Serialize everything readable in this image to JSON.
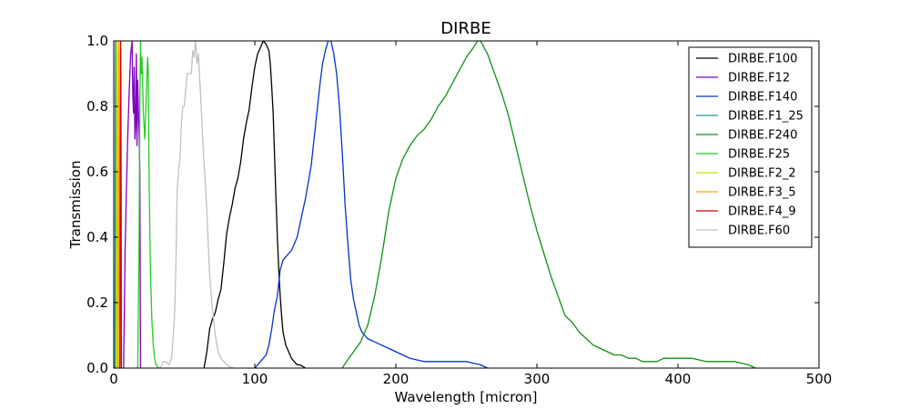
{
  "chart_data": {
    "type": "line",
    "title": "DIRBE",
    "xlabel": "Wavelength [micron]",
    "ylabel": "Transmission",
    "xlim": [
      0,
      500
    ],
    "ylim": [
      0,
      1.0
    ],
    "xticks": [
      0,
      100,
      200,
      300,
      400,
      500
    ],
    "yticks": [
      0.0,
      0.2,
      0.4,
      0.6,
      0.8,
      1.0
    ],
    "xtick_labels": [
      "0",
      "100",
      "200",
      "300",
      "400",
      "500"
    ],
    "ytick_labels": [
      "0.0",
      "0.2",
      "0.4",
      "0.6",
      "0.8",
      "1.0"
    ],
    "grid": false,
    "legend_position": "top-right",
    "series": [
      {
        "name": "DIRBE.F100",
        "color": "#000000",
        "x": [
          64,
          66,
          68,
          70,
          72,
          74,
          76,
          78,
          80,
          82,
          84,
          86,
          88,
          90,
          92,
          94,
          96,
          98,
          100,
          102,
          104,
          106,
          108,
          110,
          111,
          112,
          113,
          114,
          115,
          116,
          117,
          118,
          119,
          120,
          122,
          124,
          126,
          128,
          130,
          132,
          134,
          136
        ],
        "y": [
          0,
          0.05,
          0.12,
          0.15,
          0.17,
          0.21,
          0.24,
          0.32,
          0.41,
          0.46,
          0.5,
          0.55,
          0.58,
          0.63,
          0.7,
          0.75,
          0.79,
          0.86,
          0.92,
          0.96,
          0.98,
          1.0,
          0.99,
          0.97,
          0.93,
          0.86,
          0.78,
          0.65,
          0.52,
          0.4,
          0.3,
          0.22,
          0.16,
          0.11,
          0.07,
          0.05,
          0.03,
          0.02,
          0.01,
          0.01,
          0.005,
          0
        ]
      },
      {
        "name": "DIRBE.F12",
        "color": "#7f00bf",
        "x": [
          7,
          8,
          9,
          10,
          11,
          12,
          13,
          13.5,
          14,
          14.5,
          15,
          15.5,
          16,
          16.5,
          17,
          17.5,
          18,
          18.5,
          19
        ],
        "y": [
          0,
          0.35,
          0.55,
          0.72,
          0.85,
          0.96,
          1.0,
          0.84,
          0.78,
          0.92,
          0.7,
          0.74,
          0.96,
          0.68,
          0.88,
          0.78,
          0.72,
          0.6,
          0
        ]
      },
      {
        "name": "DIRBE.F140",
        "color": "#0033cc",
        "x": [
          100,
          102,
          104,
          106,
          108,
          110,
          112,
          114,
          116,
          118,
          120,
          122,
          124,
          126,
          128,
          130,
          132,
          134,
          136,
          138,
          140,
          142,
          144,
          146,
          148,
          150,
          152,
          154,
          156,
          158,
          160,
          162,
          164,
          166,
          168,
          170,
          172,
          174,
          176,
          178,
          180,
          185,
          190,
          195,
          200,
          205,
          210,
          220,
          230,
          240,
          250,
          260,
          265
        ],
        "y": [
          0,
          0.01,
          0.02,
          0.03,
          0.04,
          0.07,
          0.12,
          0.18,
          0.22,
          0.3,
          0.33,
          0.34,
          0.35,
          0.36,
          0.38,
          0.4,
          0.44,
          0.48,
          0.52,
          0.57,
          0.62,
          0.7,
          0.78,
          0.86,
          0.93,
          0.97,
          1.0,
          1.0,
          0.96,
          0.9,
          0.8,
          0.66,
          0.5,
          0.38,
          0.27,
          0.21,
          0.17,
          0.13,
          0.11,
          0.1,
          0.09,
          0.08,
          0.07,
          0.06,
          0.05,
          0.04,
          0.03,
          0.02,
          0.02,
          0.02,
          0.02,
          0.01,
          0
        ]
      },
      {
        "name": "DIRBE.F1_25",
        "color": "#1a9999",
        "x": [
          0.8,
          1.0,
          1.1,
          1.2,
          1.3,
          1.4,
          1.5,
          1.6,
          1.8
        ],
        "y": [
          0,
          0.5,
          0.8,
          0.95,
          1.0,
          0.9,
          0.7,
          0.4,
          0
        ]
      },
      {
        "name": "DIRBE.F240",
        "color": "#109010",
        "x": [
          162,
          165,
          170,
          175,
          180,
          185,
          190,
          195,
          200,
          205,
          210,
          215,
          220,
          225,
          230,
          235,
          240,
          245,
          250,
          255,
          258,
          260,
          265,
          270,
          275,
          280,
          285,
          290,
          295,
          300,
          305,
          310,
          315,
          320,
          325,
          330,
          335,
          340,
          345,
          350,
          355,
          360,
          365,
          370,
          375,
          380,
          385,
          390,
          395,
          400,
          410,
          420,
          430,
          440,
          450,
          455
        ],
        "y": [
          0,
          0.02,
          0.05,
          0.08,
          0.13,
          0.22,
          0.34,
          0.48,
          0.58,
          0.64,
          0.68,
          0.71,
          0.73,
          0.76,
          0.8,
          0.83,
          0.87,
          0.91,
          0.95,
          0.98,
          1.0,
          1.0,
          0.96,
          0.9,
          0.84,
          0.77,
          0.68,
          0.59,
          0.5,
          0.42,
          0.35,
          0.28,
          0.22,
          0.16,
          0.14,
          0.11,
          0.09,
          0.07,
          0.06,
          0.05,
          0.04,
          0.04,
          0.03,
          0.03,
          0.02,
          0.02,
          0.02,
          0.03,
          0.03,
          0.03,
          0.03,
          0.02,
          0.02,
          0.02,
          0.01,
          0
        ]
      },
      {
        "name": "DIRBE.F25",
        "color": "#22cc22",
        "x": [
          17,
          18,
          18.5,
          19,
          19.5,
          20,
          21,
          22,
          23,
          24,
          24.5,
          25,
          26,
          27,
          28,
          29,
          30,
          32
        ],
        "y": [
          0,
          0.4,
          0.8,
          1.0,
          0.9,
          0.95,
          0.78,
          0.7,
          0.82,
          0.95,
          0.9,
          0.6,
          0.3,
          0.15,
          0.07,
          0.03,
          0.01,
          0
        ]
      },
      {
        "name": "DIRBE.F2_2",
        "color": "#ccdd00",
        "x": [
          1.8,
          2.0,
          2.1,
          2.2,
          2.3,
          2.4,
          2.6
        ],
        "y": [
          0,
          0.6,
          0.9,
          1.0,
          0.95,
          0.6,
          0
        ]
      },
      {
        "name": "DIRBE.F3_5",
        "color": "#ffa500",
        "x": [
          3.0,
          3.2,
          3.4,
          3.5,
          3.6,
          3.8,
          4.0
        ],
        "y": [
          0,
          0.6,
          0.95,
          1.0,
          0.95,
          0.6,
          0
        ]
      },
      {
        "name": "DIRBE.F4_9",
        "color": "#cc0000",
        "x": [
          4.4,
          4.6,
          4.8,
          4.9,
          5.0,
          5.2,
          5.4
        ],
        "y": [
          0,
          0.6,
          0.95,
          1.0,
          0.95,
          0.6,
          0
        ]
      },
      {
        "name": "DIRBE.F60",
        "color": "#c0c0c0",
        "x": [
          33,
          35,
          37,
          39,
          41,
          43,
          44,
          45,
          46,
          47,
          48,
          49,
          50,
          52,
          53,
          54,
          55,
          56,
          57,
          58,
          59,
          60,
          61,
          62,
          63,
          64,
          65,
          66,
          67,
          68,
          70,
          72,
          74,
          76,
          78,
          80,
          82,
          85
        ],
        "y": [
          0,
          0.02,
          0.02,
          0.01,
          0.03,
          0.15,
          0.3,
          0.55,
          0.6,
          0.65,
          0.75,
          0.8,
          0.8,
          0.9,
          0.9,
          0.9,
          0.9,
          0.97,
          0.95,
          1.0,
          0.93,
          0.96,
          0.88,
          0.8,
          0.7,
          0.63,
          0.56,
          0.48,
          0.38,
          0.28,
          0.18,
          0.1,
          0.05,
          0.03,
          0.02,
          0.01,
          0.005,
          0
        ]
      }
    ]
  }
}
